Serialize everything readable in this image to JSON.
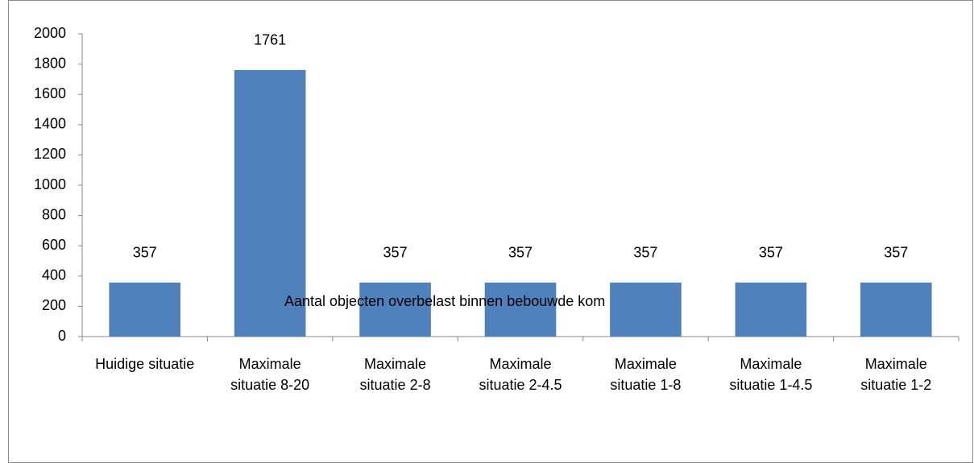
{
  "chart_data": {
    "type": "bar",
    "categories": [
      "Huidige situatie",
      "Maximale situatie 8-20",
      "Maximale situatie 2-8",
      "Maximale situatie 2-4.5",
      "Maximale situatie 1-8",
      "Maximale situatie 1-4.5",
      "Maximale situatie 1-2"
    ],
    "series": [
      {
        "name": "Aantal objecten overbelast binnen bebouwde kom",
        "color": "#4f81bd",
        "values": [
          357,
          1761,
          357,
          357,
          357,
          357,
          357
        ]
      }
    ],
    "ylim": [
      0,
      2000
    ],
    "yticks": [
      0,
      200,
      400,
      600,
      800,
      1000,
      1200,
      1400,
      1600,
      1800,
      2000
    ],
    "legend": "bottom",
    "grid": false
  }
}
